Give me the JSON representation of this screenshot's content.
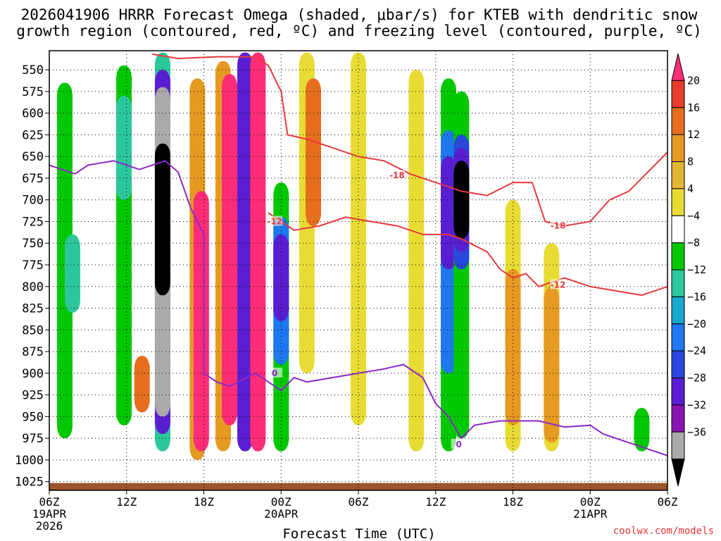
{
  "chart_data": {
    "type": "heatmap",
    "title_line1": "2026041906 HRRR Forecast Omega (shaded, μbar/s) for KTEB with dendritic snow",
    "title_line2": "growth region (contoured, red, ºC) and freezing level (contoured, purple, ºC)",
    "xlabel": "Forecast Time (UTC)",
    "credit": "coolwx.com/models",
    "x_range_hours": [
      0,
      48
    ],
    "y_range_mb": [
      1035,
      528
    ],
    "y_ticks": [
      "550",
      "575",
      "600",
      "625",
      "650",
      "675",
      "700",
      "725",
      "750",
      "775",
      "800",
      "825",
      "850",
      "875",
      "900",
      "925",
      "950",
      "975",
      "1000",
      "1025"
    ],
    "x_ticks": [
      {
        "hour": 0,
        "label": "06Z",
        "date": "19APR",
        "year": "2026"
      },
      {
        "hour": 6,
        "label": "12Z"
      },
      {
        "hour": 12,
        "label": "18Z"
      },
      {
        "hour": 18,
        "label": "00Z",
        "date": "20APR"
      },
      {
        "hour": 24,
        "label": "06Z"
      },
      {
        "hour": 30,
        "label": "12Z"
      },
      {
        "hour": 36,
        "label": "18Z"
      },
      {
        "hour": 42,
        "label": "00Z",
        "date": "21APR"
      },
      {
        "hour": 48,
        "label": "06Z"
      }
    ],
    "colorbar": {
      "labels": [
        "20",
        "16",
        "12",
        "8",
        "4",
        "−4",
        "−8",
        "−12",
        "−16",
        "−20",
        "−24",
        "−28",
        "−32",
        "−36"
      ],
      "bin_colors": [
        "#ff2d78",
        "#e83c2c",
        "#e66e1e",
        "#e69a22",
        "#e2b632",
        "#e8dc34",
        "#ffffff",
        "#00c800",
        "#2cc89c",
        "#18a8d0",
        "#1e78f0",
        "#2848dc",
        "#5a1ed2",
        "#8c14b4",
        "#aaaaaa",
        "#000000"
      ]
    },
    "shading_cells": [
      {
        "hour": 1.2,
        "p_top": 565,
        "p_bot": 975,
        "color": "#00c800"
      },
      {
        "hour": 1.8,
        "p_top": 740,
        "p_bot": 830,
        "color": "#2cc89c"
      },
      {
        "hour": 5.8,
        "p_top": 545,
        "p_bot": 960,
        "color": "#00c800"
      },
      {
        "hour": 5.8,
        "p_top": 580,
        "p_bot": 700,
        "color": "#2cc89c"
      },
      {
        "hour": 7.2,
        "p_top": 880,
        "p_bot": 945,
        "color": "#e66e1e"
      },
      {
        "hour": 8.8,
        "p_top": 530,
        "p_bot": 990,
        "color": "#2cc89c"
      },
      {
        "hour": 8.8,
        "p_top": 550,
        "p_bot": 970,
        "color": "#5a1ed2"
      },
      {
        "hour": 8.8,
        "p_top": 570,
        "p_bot": 950,
        "color": "#aaaaaa"
      },
      {
        "hour": 8.8,
        "p_top": 635,
        "p_bot": 810,
        "color": "#000000"
      },
      {
        "hour": 11.5,
        "p_top": 560,
        "p_bot": 1000,
        "color": "#e69a22"
      },
      {
        "hour": 11.8,
        "p_top": 690,
        "p_bot": 990,
        "color": "#ff2d78"
      },
      {
        "hour": 13.5,
        "p_top": 540,
        "p_bot": 990,
        "color": "#e69a22"
      },
      {
        "hour": 14.0,
        "p_top": 555,
        "p_bot": 960,
        "color": "#ff2d78"
      },
      {
        "hour": 15.2,
        "p_top": 530,
        "p_bot": 990,
        "color": "#5a1ed2"
      },
      {
        "hour": 16.2,
        "p_top": 530,
        "p_bot": 990,
        "color": "#ff2d78"
      },
      {
        "hour": 18.0,
        "p_top": 680,
        "p_bot": 990,
        "color": "#00c800"
      },
      {
        "hour": 18.0,
        "p_top": 720,
        "p_bot": 890,
        "color": "#1e78f0"
      },
      {
        "hour": 18.0,
        "p_top": 740,
        "p_bot": 840,
        "color": "#5a1ed2"
      },
      {
        "hour": 20.0,
        "p_top": 530,
        "p_bot": 900,
        "color": "#e8dc34"
      },
      {
        "hour": 20.5,
        "p_top": 560,
        "p_bot": 730,
        "color": "#e66e1e"
      },
      {
        "hour": 24.0,
        "p_top": 530,
        "p_bot": 960,
        "color": "#e8dc34"
      },
      {
        "hour": 28.5,
        "p_top": 550,
        "p_bot": 990,
        "color": "#e8dc34"
      },
      {
        "hour": 31.0,
        "p_top": 560,
        "p_bot": 990,
        "color": "#00c800"
      },
      {
        "hour": 31.0,
        "p_top": 620,
        "p_bot": 900,
        "color": "#1e78f0"
      },
      {
        "hour": 31.0,
        "p_top": 650,
        "p_bot": 780,
        "color": "#5a1ed2"
      },
      {
        "hour": 32.0,
        "p_top": 575,
        "p_bot": 975,
        "color": "#00c800"
      },
      {
        "hour": 32.0,
        "p_top": 625,
        "p_bot": 780,
        "color": "#2848dc"
      },
      {
        "hour": 32.0,
        "p_top": 640,
        "p_bot": 760,
        "color": "#5a1ed2"
      },
      {
        "hour": 32.0,
        "p_top": 655,
        "p_bot": 745,
        "color": "#000000"
      },
      {
        "hour": 36.0,
        "p_top": 700,
        "p_bot": 990,
        "color": "#e8dc34"
      },
      {
        "hour": 36.0,
        "p_top": 780,
        "p_bot": 960,
        "color": "#e69a22"
      },
      {
        "hour": 39.0,
        "p_top": 750,
        "p_bot": 990,
        "color": "#e8dc34"
      },
      {
        "hour": 39.0,
        "p_top": 800,
        "p_bot": 980,
        "color": "#e69a22"
      },
      {
        "hour": 46.0,
        "p_top": 940,
        "p_bot": 990,
        "color": "#00c800"
      }
    ],
    "series": [
      {
        "name": "dendritic -18C",
        "color": "#e8383c",
        "label": "-18",
        "label_points": [
          {
            "hour": 27.0,
            "mb": 672
          },
          {
            "hour": 39.5,
            "mb": 730
          }
        ],
        "points": [
          [
            8.0,
            532
          ],
          [
            10.0,
            537
          ],
          [
            13.0,
            535
          ],
          [
            16.0,
            535
          ],
          [
            17.0,
            545
          ],
          [
            18.0,
            575
          ],
          [
            18.5,
            625
          ],
          [
            20.0,
            630
          ],
          [
            22.0,
            640
          ],
          [
            24.0,
            650
          ],
          [
            26.0,
            655
          ],
          [
            28.0,
            670
          ],
          [
            30.0,
            680
          ],
          [
            32.0,
            690
          ],
          [
            34.0,
            695
          ],
          [
            36.0,
            680
          ],
          [
            37.5,
            680
          ],
          [
            38.5,
            725
          ],
          [
            40.0,
            730
          ],
          [
            42.0,
            725
          ],
          [
            43.5,
            700
          ],
          [
            45.0,
            690
          ],
          [
            47.0,
            660
          ],
          [
            48.0,
            645
          ]
        ]
      },
      {
        "name": "dendritic -12C",
        "color": "#e8383c",
        "label": "-12",
        "label_points": [
          {
            "hour": 17.5,
            "mb": 725
          },
          {
            "hour": 39.5,
            "mb": 798
          }
        ],
        "points": [
          [
            17.0,
            715
          ],
          [
            18.0,
            725
          ],
          [
            19.0,
            735
          ],
          [
            21.0,
            730
          ],
          [
            23.0,
            720
          ],
          [
            25.0,
            725
          ],
          [
            27.0,
            730
          ],
          [
            29.0,
            740
          ],
          [
            31.0,
            740
          ],
          [
            32.0,
            745
          ],
          [
            34.0,
            760
          ],
          [
            35.0,
            780
          ],
          [
            36.0,
            790
          ],
          [
            37.0,
            785
          ],
          [
            38.0,
            800
          ],
          [
            40.0,
            790
          ],
          [
            42.0,
            800
          ],
          [
            44.0,
            805
          ],
          [
            46.0,
            810
          ],
          [
            48.0,
            800
          ]
        ]
      },
      {
        "name": "freezing level 0C",
        "color": "#8c28c8",
        "label": "0",
        "label_points": [
          {
            "hour": 17.5,
            "mb": 900
          },
          {
            "hour": 31.8,
            "mb": 982
          }
        ],
        "points": [
          [
            0.0,
            660
          ],
          [
            2.0,
            670
          ],
          [
            3.0,
            660
          ],
          [
            5.0,
            655
          ],
          [
            7.0,
            665
          ],
          [
            9.0,
            655
          ],
          [
            10.0,
            668
          ],
          [
            11.0,
            710
          ],
          [
            12.0,
            740
          ],
          [
            12.0,
            900
          ],
          [
            13.0,
            910
          ],
          [
            14.0,
            915
          ],
          [
            16.0,
            900
          ],
          [
            18.0,
            920
          ],
          [
            19.0,
            905
          ],
          [
            20.0,
            910
          ],
          [
            22.0,
            905
          ],
          [
            24.0,
            900
          ],
          [
            26.0,
            895
          ],
          [
            27.5,
            890
          ],
          [
            29.0,
            905
          ],
          [
            30.0,
            935
          ],
          [
            31.0,
            950
          ],
          [
            32.0,
            975
          ],
          [
            33.0,
            960
          ],
          [
            35.0,
            955
          ],
          [
            37.0,
            955
          ],
          [
            38.0,
            955
          ],
          [
            40.0,
            962
          ],
          [
            42.0,
            960
          ],
          [
            43.0,
            970
          ],
          [
            45.0,
            980
          ],
          [
            48.0,
            995
          ]
        ]
      }
    ]
  }
}
